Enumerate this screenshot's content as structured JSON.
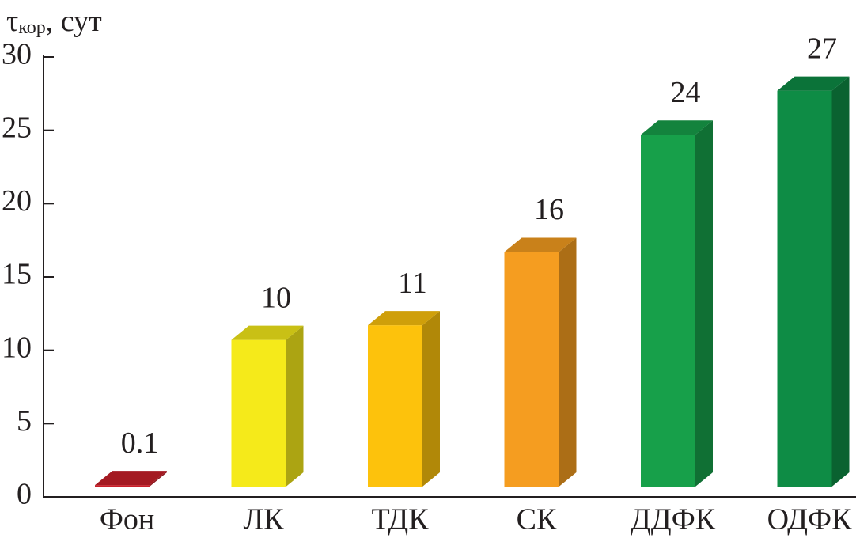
{
  "chart_data": {
    "type": "bar3d",
    "y_label": {
      "symbol": "τ",
      "subscript": "кор",
      "unit": ", сут"
    },
    "categories": [
      "Фон",
      "ЛК",
      "ТДК",
      "СК",
      "ДДФК",
      "ОДФК"
    ],
    "values": [
      0.1,
      10,
      11,
      16,
      24,
      27
    ],
    "colors": [
      "#c8202a",
      "#f5ea1a",
      "#fdc20c",
      "#f59d20",
      "#17a04a",
      "#0e8c45"
    ],
    "ylim": [
      0,
      30
    ],
    "yticks": [
      0,
      5,
      10,
      15,
      20,
      25,
      30
    ]
  }
}
